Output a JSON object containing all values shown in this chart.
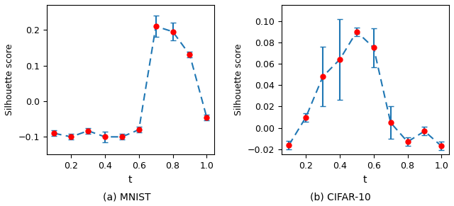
{
  "mnist": {
    "x": [
      0.1,
      0.2,
      0.3,
      0.4,
      0.5,
      0.6,
      0.7,
      0.8,
      0.9,
      1.0
    ],
    "y": [
      -0.09,
      -0.1,
      -0.083,
      -0.1,
      -0.1,
      -0.08,
      0.21,
      0.195,
      0.13,
      -0.045
    ],
    "yerr": [
      0.008,
      0.008,
      0.008,
      0.015,
      0.008,
      0.008,
      0.03,
      0.025,
      0.008,
      0.008
    ],
    "xlabel": "t",
    "ylabel": "Silhouette score",
    "caption": "(a) MNIST",
    "ylim": [
      -0.15,
      0.27
    ],
    "yticks": [
      -0.1,
      0.0,
      0.1,
      0.2
    ]
  },
  "cifar": {
    "x": [
      0.1,
      0.2,
      0.3,
      0.4,
      0.5,
      0.6,
      0.7,
      0.8,
      0.9,
      1.0
    ],
    "y": [
      -0.016,
      0.01,
      0.048,
      0.064,
      0.09,
      0.075,
      0.005,
      -0.013,
      -0.003,
      -0.017
    ],
    "yerr": [
      0.004,
      0.004,
      0.028,
      0.038,
      0.004,
      0.018,
      0.015,
      0.004,
      0.004,
      0.004
    ],
    "xlabel": "t",
    "ylabel": "Silhouette score",
    "caption": "(b) CIFAR-10",
    "ylim": [
      -0.025,
      0.115
    ],
    "yticks": [
      -0.02,
      0.0,
      0.02,
      0.04,
      0.06,
      0.08,
      0.1
    ]
  },
  "line_color": "#1f77b4",
  "marker_color": "red",
  "marker_size": 5,
  "line_width": 1.5,
  "cap_size": 3,
  "xticks": [
    0.2,
    0.4,
    0.6,
    0.8,
    1.0
  ],
  "xtick_labels": [
    "0.2",
    "0.4",
    "0.6",
    "0.8",
    "1.0"
  ]
}
